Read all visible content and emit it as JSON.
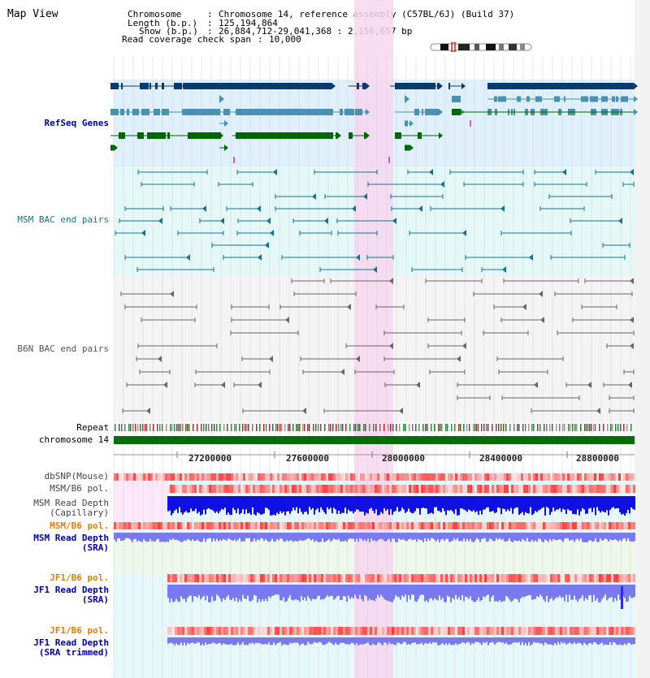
{
  "page_title": "Map View",
  "header": {
    "chromosome_key": "Chromosome",
    "chromosome_value": "Chromosome 14, reference assembly (C57BL/6J) (Build 37)",
    "length_key": "Length (b.p.)",
    "length_value": "125,194,864",
    "show_key": "Show (b.p.)",
    "show_value": "26,884,712-29,041,368 : 2,156,657 bp",
    "span_key": "Read coverage check span",
    "span_value": "10,000"
  },
  "tracks": {
    "refseq": "RefSeq Genes",
    "msm_bac": "MSM BAC end pairs",
    "b6n_bac": "B6N BAC end pairs",
    "repeat": "Repeat",
    "chromosome": "chromosome 14",
    "dbsnp": "dbSNP(Mouse)",
    "msm_b6_pol_1": "MSM/B6 pol.",
    "msm_depth_cap_1": "MSM Read Depth",
    "msm_depth_cap_2": "(Capillary)",
    "msm_b6_pol_2": "MSM/B6 pol.",
    "msm_depth_sra_1": "MSM Read Depth",
    "msm_depth_sra_2": "(SRA)",
    "jf1_b6_pol_1": "JF1/B6 pol.",
    "jf1_depth_sra_1": "JF1 Read Depth",
    "jf1_depth_sra_2": "(SRA)",
    "jf1_b6_pol_2": "JF1/B6 pol.",
    "jf1_depth_trim_1": "JF1 Read Depth",
    "jf1_depth_trim_2": "(SRA trimmed)"
  },
  "axis_ticks": [
    "27200000",
    "27600000",
    "28000000",
    "28400000",
    "28800000"
  ],
  "colors": {
    "refseq_bg": "#dff0fa",
    "msm_bg": "#e4f8f8",
    "highlight": "#f7d6f0",
    "gene_dark": "#0a3a6e",
    "gene_light": "#4a90b0",
    "gene_green": "#006600",
    "bac_msm": "#1a6f8a",
    "bac_b6n": "#666666",
    "depth_blue": "#1010e0",
    "depth_light": "#7a7af0",
    "pol_red": "#e03030",
    "label_blue": "#0000aa",
    "label_orange": "#e08000"
  }
}
